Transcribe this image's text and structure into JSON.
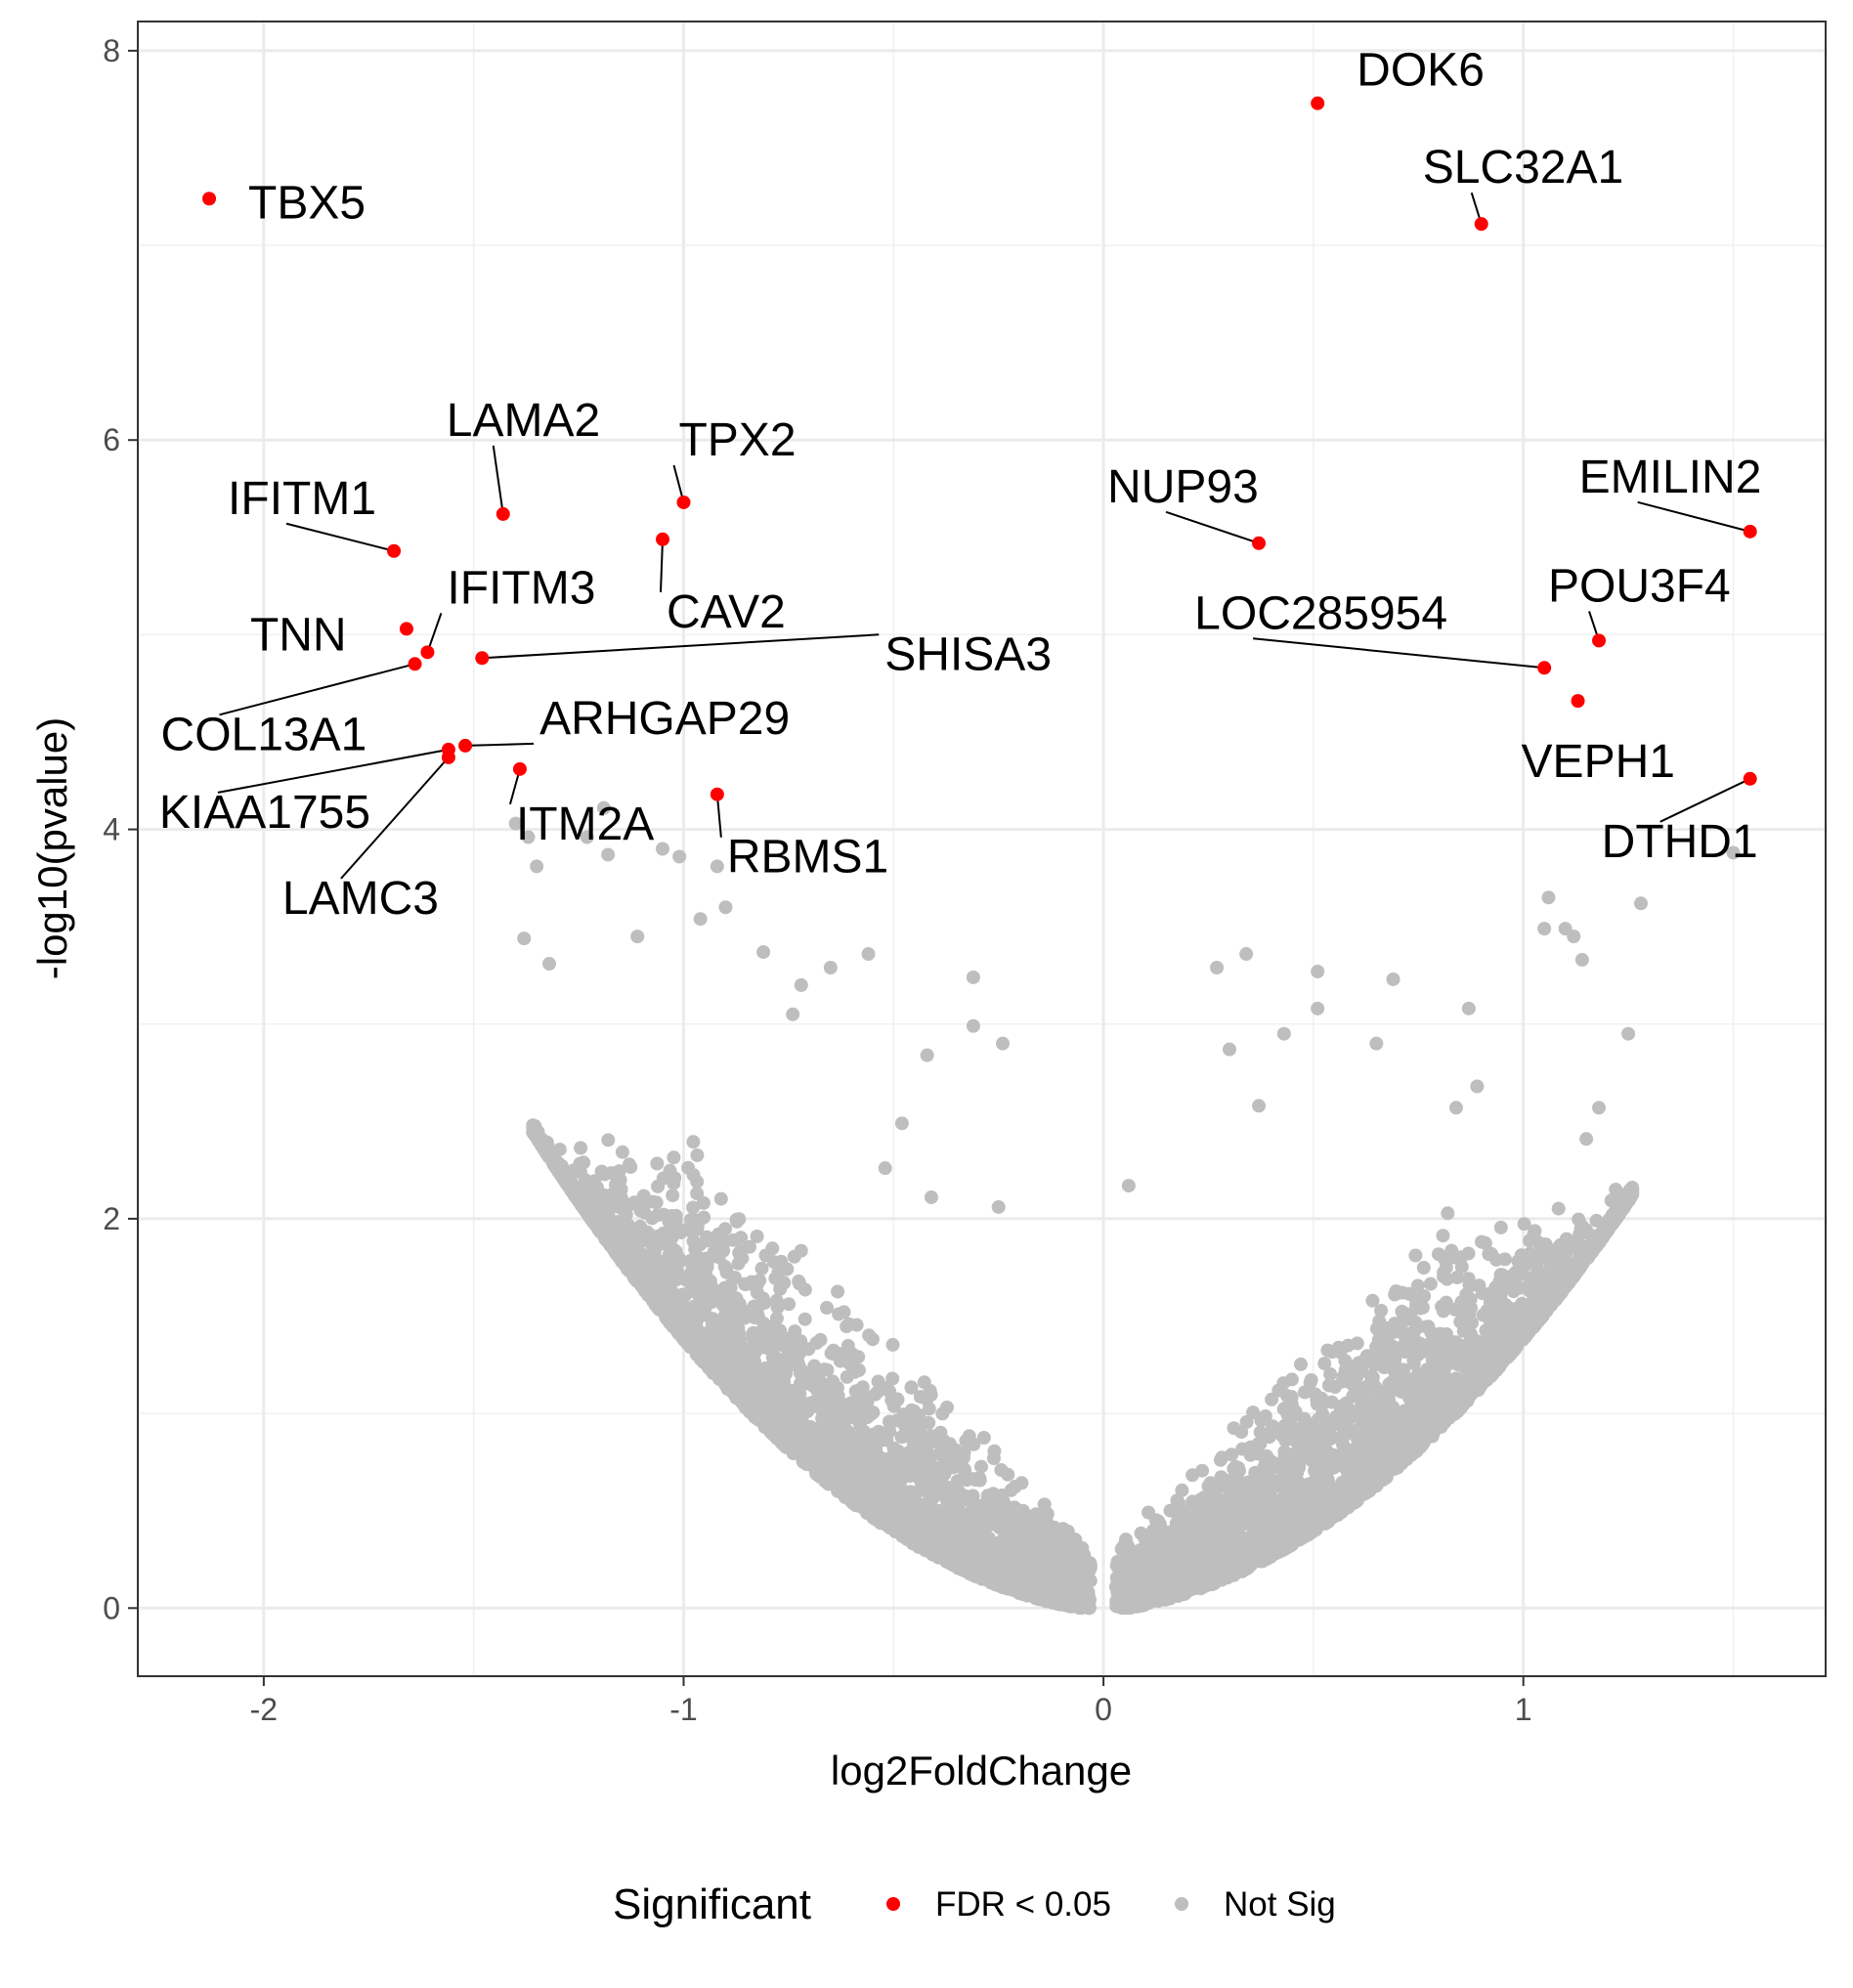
{
  "chart_data": {
    "type": "scatter",
    "title": "",
    "xlabel": "log2FoldChange",
    "ylabel": "-log10(pvalue)",
    "xlim": [
      -2.3,
      1.72
    ],
    "ylim": [
      -0.35,
      8.15
    ],
    "x_ticks": [
      -2,
      -1,
      0,
      1
    ],
    "y_ticks": [
      0,
      2,
      4,
      6,
      8
    ],
    "grid": true,
    "legend": {
      "title": "Significant",
      "position": "bottom",
      "entries": [
        {
          "label": "FDR < 0.05",
          "color": "#ff0000"
        },
        {
          "label": "Not Sig",
          "color": "#bebebe"
        }
      ]
    },
    "series": [
      {
        "name": "FDR < 0.05",
        "color": "#ff0000",
        "points": [
          {
            "x": -2.13,
            "y": 7.24,
            "label": "TBX5"
          },
          {
            "x": 0.51,
            "y": 7.73,
            "label": "DOK6"
          },
          {
            "x": 0.9,
            "y": 7.11,
            "label": "SLC32A1"
          },
          {
            "x": -1.43,
            "y": 5.62,
            "label": "LAMA2"
          },
          {
            "x": -1.0,
            "y": 5.68,
            "label": "TPX2"
          },
          {
            "x": -1.69,
            "y": 5.43,
            "label": "IFITM1"
          },
          {
            "x": -1.05,
            "y": 5.49,
            "label": "CAV2"
          },
          {
            "x": 0.37,
            "y": 5.47,
            "label": "NUP93"
          },
          {
            "x": 1.54,
            "y": 5.53,
            "label": "EMILIN2"
          },
          {
            "x": -1.66,
            "y": 5.03,
            "label": "TNN"
          },
          {
            "x": -1.61,
            "y": 4.91,
            "label": "IFITM3"
          },
          {
            "x": -1.64,
            "y": 4.85,
            "label": "COL13A1"
          },
          {
            "x": -1.48,
            "y": 4.88,
            "label": "SHISA3"
          },
          {
            "x": 1.18,
            "y": 4.97,
            "label": "POU3F4"
          },
          {
            "x": 1.05,
            "y": 4.83,
            "label": "LOC285954"
          },
          {
            "x": 1.13,
            "y": 4.66,
            "label": "VEPH1"
          },
          {
            "x": -1.52,
            "y": 4.43,
            "label": "ARHGAP29"
          },
          {
            "x": -1.56,
            "y": 4.41,
            "label": "KIAA1755"
          },
          {
            "x": -1.56,
            "y": 4.37,
            "label": "LAMC3"
          },
          {
            "x": -1.39,
            "y": 4.31,
            "label": "ITM2A"
          },
          {
            "x": -0.92,
            "y": 4.18,
            "label": "RBMS1"
          },
          {
            "x": 1.54,
            "y": 4.26,
            "label": "DTHD1"
          }
        ]
      },
      {
        "name": "Not Sig",
        "color": "#bebebe",
        "points": [
          {
            "x": -1.19,
            "y": 4.11
          },
          {
            "x": -1.4,
            "y": 4.03
          },
          {
            "x": -1.37,
            "y": 3.96
          },
          {
            "x": -1.23,
            "y": 3.96
          },
          {
            "x": -1.18,
            "y": 3.87
          },
          {
            "x": -1.05,
            "y": 3.9
          },
          {
            "x": -1.35,
            "y": 3.81
          },
          {
            "x": -1.01,
            "y": 3.86
          },
          {
            "x": -0.92,
            "y": 3.81
          },
          {
            "x": -0.9,
            "y": 3.6
          },
          {
            "x": -0.96,
            "y": 3.54
          },
          {
            "x": -1.38,
            "y": 3.44
          },
          {
            "x": -1.11,
            "y": 3.45
          },
          {
            "x": -0.81,
            "y": 3.37
          },
          {
            "x": -0.56,
            "y": 3.36
          },
          {
            "x": -0.65,
            "y": 3.29
          },
          {
            "x": -1.32,
            "y": 3.31
          },
          {
            "x": -0.72,
            "y": 3.2
          },
          {
            "x": -0.31,
            "y": 3.24
          },
          {
            "x": -0.74,
            "y": 3.05
          },
          {
            "x": -0.31,
            "y": 2.99
          },
          {
            "x": -0.24,
            "y": 2.9
          },
          {
            "x": -0.42,
            "y": 2.84
          },
          {
            "x": 0.27,
            "y": 3.29
          },
          {
            "x": 0.34,
            "y": 3.36
          },
          {
            "x": 0.51,
            "y": 3.27
          },
          {
            "x": 0.51,
            "y": 3.08
          },
          {
            "x": 0.69,
            "y": 3.23
          },
          {
            "x": 0.87,
            "y": 3.08
          },
          {
            "x": 1.06,
            "y": 3.65
          },
          {
            "x": 1.1,
            "y": 3.49
          },
          {
            "x": 1.12,
            "y": 3.45
          },
          {
            "x": 1.14,
            "y": 3.33
          },
          {
            "x": 1.28,
            "y": 3.62
          },
          {
            "x": 1.25,
            "y": 2.95
          },
          {
            "x": 1.05,
            "y": 3.49
          },
          {
            "x": 1.5,
            "y": 3.88
          },
          {
            "x": 0.43,
            "y": 2.95
          },
          {
            "x": 0.3,
            "y": 2.87
          },
          {
            "x": 0.37,
            "y": 2.58
          },
          {
            "x": 0.65,
            "y": 2.9
          },
          {
            "x": 0.84,
            "y": 2.57
          },
          {
            "x": 0.89,
            "y": 2.68
          },
          {
            "x": 1.15,
            "y": 2.41
          },
          {
            "x": 1.18,
            "y": 2.57
          },
          {
            "x": 1.22,
            "y": 2.15
          },
          {
            "x": -0.48,
            "y": 2.49
          },
          {
            "x": -0.41,
            "y": 2.11
          },
          {
            "x": -0.25,
            "y": 2.06
          },
          {
            "x": -0.52,
            "y": 2.26
          },
          {
            "x": 0.06,
            "y": 2.17
          }
        ]
      }
    ],
    "cloud": [
      {
        "from_x": -1.36,
        "to_x": -0.03,
        "upper_y": 2.45
      },
      {
        "from_x": 0.03,
        "to_x": 1.26,
        "upper_y": 2.1
      }
    ]
  }
}
